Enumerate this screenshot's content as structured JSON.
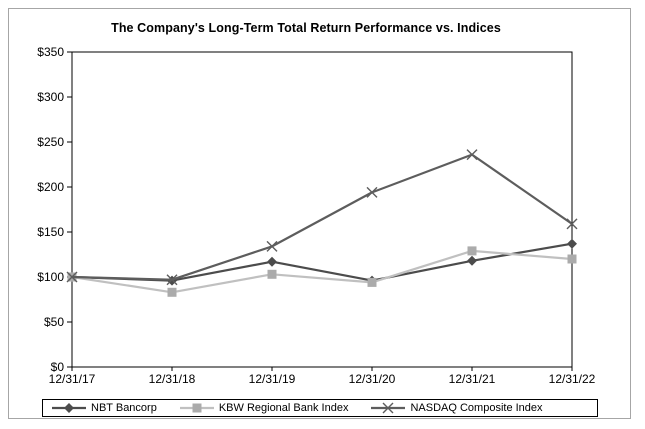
{
  "style": {
    "background": "#ffffff",
    "frame_border": "#a6a6a6",
    "axis_color": "#000000",
    "text_color": "#000000",
    "legend_border": "#000000"
  },
  "chart_data": {
    "type": "line",
    "title": "The Company's Long-Term Total Return Performance vs. Indices",
    "categories": [
      "12/31/17",
      "12/31/18",
      "12/31/19",
      "12/31/20",
      "12/31/21",
      "12/31/22"
    ],
    "series": [
      {
        "name": "NBT Bancorp",
        "values": [
          100,
          96,
          117,
          96,
          118,
          137
        ],
        "color": "#4c4c4c",
        "marker": "diamond",
        "marker_color": "#4c4c4c"
      },
      {
        "name": "KBW Regional Bank Index",
        "values": [
          100,
          83,
          103,
          94,
          129,
          120
        ],
        "color": "#c0c0c0",
        "marker": "square",
        "marker_color": "#ababab"
      },
      {
        "name": "NASDAQ Composite Index",
        "values": [
          100,
          97,
          134,
          194,
          236,
          159
        ],
        "color": "#5d5d5d",
        "marker": "x",
        "marker_color": "#5d5d5d"
      }
    ],
    "xlabel": "",
    "ylabel": "",
    "ylim": [
      0,
      350
    ],
    "y_tick_step": 50,
    "y_tick_labels": [
      "$0",
      "$50",
      "$100",
      "$150",
      "$200",
      "$250",
      "$300",
      "$350"
    ],
    "grid": false,
    "legend_position": "bottom"
  }
}
